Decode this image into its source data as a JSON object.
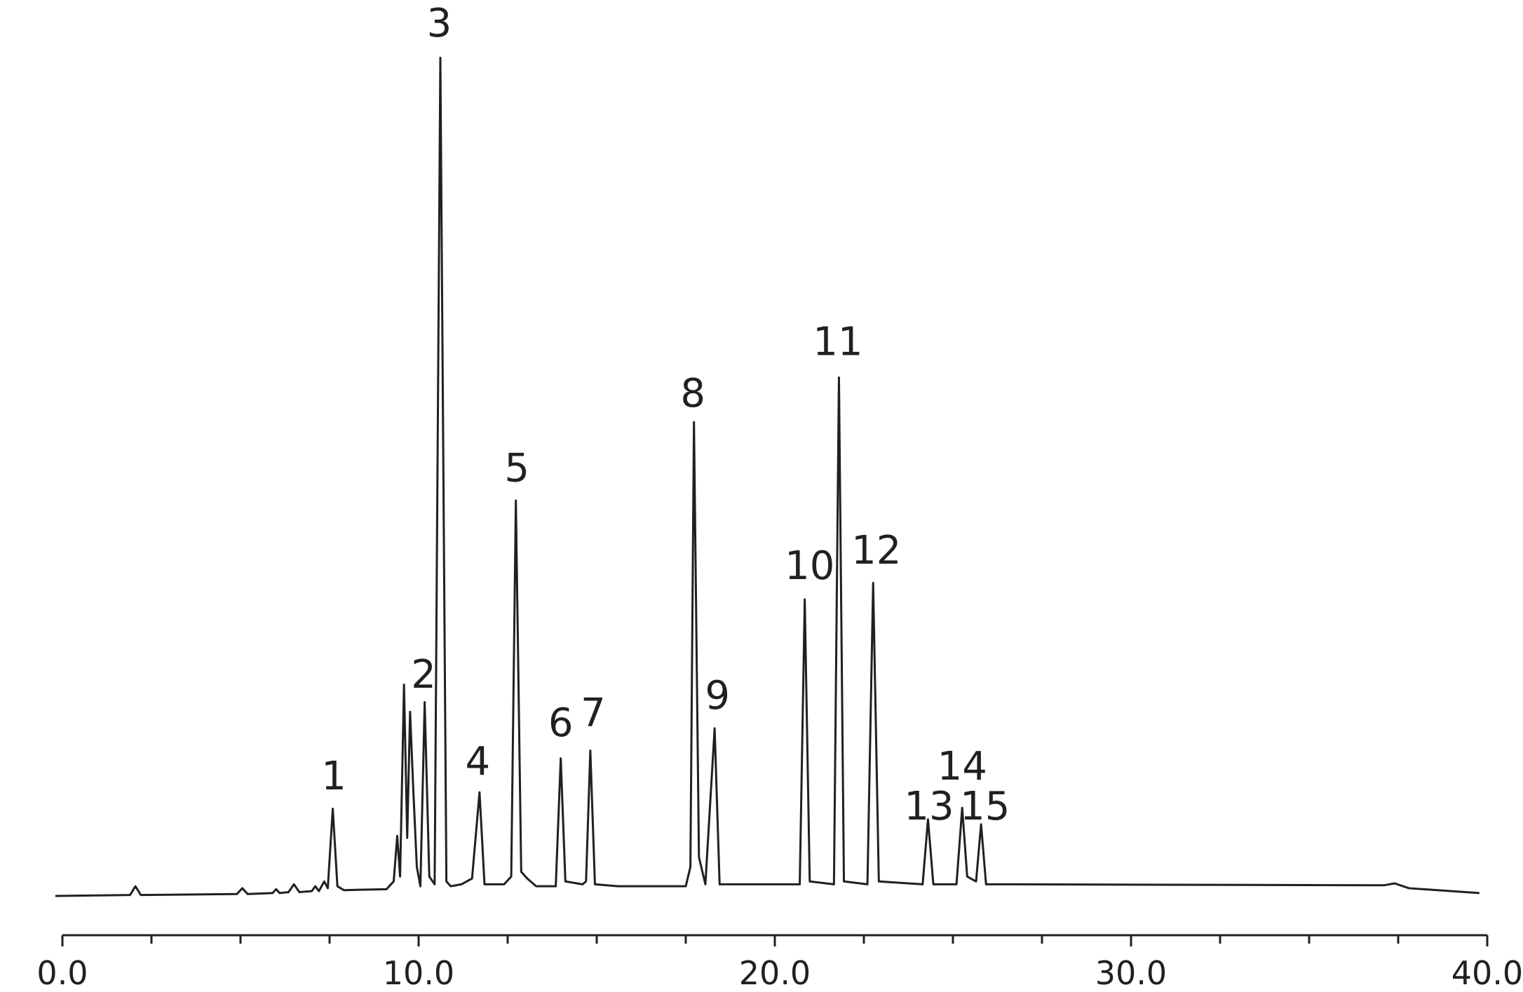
{
  "chart_data": {
    "type": "line",
    "x": [
      -0.2,
      1.9,
      2.05,
      2.2,
      4.9,
      5.05,
      5.2,
      5.9,
      6.0,
      6.1,
      6.35,
      6.5,
      6.65,
      7.0,
      7.1,
      7.2,
      7.35,
      7.45,
      7.59,
      7.72,
      7.9,
      9.1,
      9.3,
      9.4,
      9.48,
      9.59,
      9.68,
      9.76,
      9.85,
      9.95,
      10.05,
      10.17,
      10.3,
      10.45,
      10.61,
      10.78,
      10.9,
      11.2,
      11.5,
      11.71,
      11.85,
      12.4,
      12.6,
      12.73,
      12.88,
      13.05,
      13.3,
      13.85,
      13.99,
      14.12,
      14.6,
      14.7,
      14.82,
      14.95,
      15.6,
      17.5,
      17.63,
      17.73,
      17.87,
      18.05,
      18.31,
      18.45,
      20.7,
      20.84,
      20.98,
      21.66,
      21.8,
      21.94,
      22.6,
      22.76,
      22.92,
      24.15,
      24.3,
      24.45,
      25.1,
      25.26,
      25.4,
      25.65,
      25.79,
      25.93,
      26.8,
      37.1,
      37.4,
      37.8,
      39.78
    ],
    "values": [
      0,
      1,
      10,
      1,
      2,
      8,
      2,
      3,
      7,
      3,
      4,
      12,
      4,
      5,
      10,
      5,
      15,
      8,
      90,
      10,
      6,
      7,
      15,
      62,
      20,
      218,
      60,
      190,
      110,
      30,
      10,
      200,
      20,
      12,
      865,
      15,
      10,
      12,
      18,
      107,
      12,
      12,
      20,
      408,
      25,
      18,
      10,
      10,
      142,
      15,
      12,
      15,
      150,
      12,
      10,
      10,
      30,
      489,
      40,
      12,
      173,
      12,
      12,
      306,
      15,
      12,
      535,
      15,
      12,
      323,
      15,
      12,
      79,
      12,
      12,
      91,
      20,
      15,
      74,
      12,
      12,
      11,
      13,
      8,
      3
    ],
    "color": "#231f20",
    "xlim": [
      0,
      40
    ],
    "xticks": [
      {
        "value": 0,
        "label": "0.0"
      },
      {
        "value": 10,
        "label": "10.0"
      },
      {
        "value": 20,
        "label": "20.0"
      },
      {
        "value": 30,
        "label": "30.0"
      },
      {
        "value": 40,
        "label": "40.0"
      }
    ],
    "minor_xticks": [
      2.5,
      5,
      7.5,
      12.5,
      15,
      17.5,
      22.5,
      25,
      27.5,
      32.5,
      35,
      37.5
    ],
    "ylim": [
      0,
      900
    ],
    "annotations": [
      {
        "text": "1",
        "x": 7.62,
        "y": 110
      },
      {
        "text": "2",
        "x": 10.14,
        "y": 215
      },
      {
        "text": "3",
        "x": 10.58,
        "y": 887
      },
      {
        "text": "4",
        "x": 11.66,
        "y": 125
      },
      {
        "text": "5",
        "x": 12.76,
        "y": 428
      },
      {
        "text": "6",
        "x": 13.99,
        "y": 165
      },
      {
        "text": "7",
        "x": 14.9,
        "y": 175
      },
      {
        "text": "8",
        "x": 17.7,
        "y": 505
      },
      {
        "text": "9",
        "x": 18.39,
        "y": 193
      },
      {
        "text": "10",
        "x": 20.98,
        "y": 327
      },
      {
        "text": "11",
        "x": 21.77,
        "y": 558
      },
      {
        "text": "12",
        "x": 22.85,
        "y": 343
      },
      {
        "text": "13",
        "x": 24.33,
        "y": 79
      },
      {
        "text": "14",
        "x": 25.26,
        "y": 120
      },
      {
        "text": "15",
        "x": 25.9,
        "y": 79
      }
    ]
  }
}
